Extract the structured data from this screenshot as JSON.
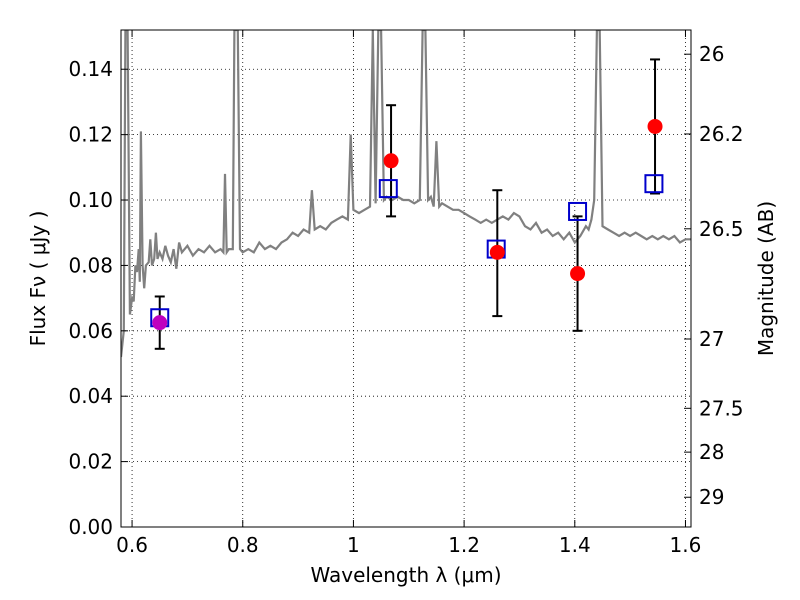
{
  "chart_data": {
    "type": "scatter",
    "xlabel": "Wavelength  λ (μm)",
    "ylabel": "Flux  Fν ( μJy )",
    "ylabel_right": "Magnitude (AB)",
    "xlim": [
      0.58,
      1.61
    ],
    "ylim": [
      0.0,
      0.152
    ],
    "grid": true,
    "colors": {
      "spectrum": "#808080",
      "observed": "#ff0000",
      "observed_first": "#bf00bf",
      "model": "#0000cc",
      "errorbar": "#000000"
    },
    "x_ticks": [
      {
        "v": 0.6,
        "label": "0.6"
      },
      {
        "v": 0.8,
        "label": "0.8"
      },
      {
        "v": 1.0,
        "label": "1"
      },
      {
        "v": 1.2,
        "label": "1.2"
      },
      {
        "v": 1.4,
        "label": "1.4"
      },
      {
        "v": 1.6,
        "label": "1.6"
      }
    ],
    "y_ticks": [
      {
        "v": 0.0,
        "label": "0.00"
      },
      {
        "v": 0.02,
        "label": "0.02"
      },
      {
        "v": 0.04,
        "label": "0.04"
      },
      {
        "v": 0.06,
        "label": "0.06"
      },
      {
        "v": 0.08,
        "label": "0.08"
      },
      {
        "v": 0.1,
        "label": "0.10"
      },
      {
        "v": 0.12,
        "label": "0.12"
      },
      {
        "v": 0.14,
        "label": "0.14"
      }
    ],
    "mag_ticks": [
      {
        "v": 0.1446,
        "label": "26"
      },
      {
        "v": 0.1202,
        "label": "26.2"
      },
      {
        "v": 0.0912,
        "label": "26.5"
      },
      {
        "v": 0.0575,
        "label": "27"
      },
      {
        "v": 0.0363,
        "label": "27.5"
      },
      {
        "v": 0.0229,
        "label": "28"
      },
      {
        "v": 0.0091,
        "label": "29"
      }
    ],
    "observed": [
      {
        "x": 0.65,
        "y": 0.0625,
        "err_lo": 0.0545,
        "err_hi": 0.0705
      },
      {
        "x": 1.068,
        "y": 0.112,
        "err_lo": 0.095,
        "err_hi": 0.129
      },
      {
        "x": 1.26,
        "y": 0.084,
        "err_lo": 0.0645,
        "err_hi": 0.103
      },
      {
        "x": 1.405,
        "y": 0.0775,
        "err_lo": 0.06,
        "err_hi": 0.095
      },
      {
        "x": 1.545,
        "y": 0.1225,
        "err_lo": 0.102,
        "err_hi": 0.143
      }
    ],
    "model": [
      {
        "x": 0.65,
        "y": 0.064
      },
      {
        "x": 1.063,
        "y": 0.1035
      },
      {
        "x": 1.258,
        "y": 0.085
      },
      {
        "x": 1.405,
        "y": 0.0965
      },
      {
        "x": 1.543,
        "y": 0.105
      }
    ],
    "spectrum": [
      [
        0.58,
        0.052
      ],
      [
        0.585,
        0.06
      ],
      [
        0.588,
        0.152
      ],
      [
        0.592,
        0.152
      ],
      [
        0.596,
        0.065
      ],
      [
        0.6,
        0.07
      ],
      [
        0.603,
        0.069
      ],
      [
        0.606,
        0.08
      ],
      [
        0.609,
        0.078
      ],
      [
        0.612,
        0.085
      ],
      [
        0.614,
        0.075
      ],
      [
        0.616,
        0.121
      ],
      [
        0.619,
        0.08
      ],
      [
        0.622,
        0.073
      ],
      [
        0.625,
        0.08
      ],
      [
        0.63,
        0.081
      ],
      [
        0.633,
        0.088
      ],
      [
        0.636,
        0.08
      ],
      [
        0.64,
        0.082
      ],
      [
        0.643,
        0.09
      ],
      [
        0.646,
        0.082
      ],
      [
        0.65,
        0.084
      ],
      [
        0.655,
        0.082
      ],
      [
        0.66,
        0.086
      ],
      [
        0.665,
        0.083
      ],
      [
        0.67,
        0.081
      ],
      [
        0.675,
        0.085
      ],
      [
        0.68,
        0.079
      ],
      [
        0.685,
        0.087
      ],
      [
        0.69,
        0.084
      ],
      [
        0.7,
        0.086
      ],
      [
        0.71,
        0.083
      ],
      [
        0.72,
        0.085
      ],
      [
        0.73,
        0.084
      ],
      [
        0.74,
        0.086
      ],
      [
        0.75,
        0.084
      ],
      [
        0.76,
        0.085
      ],
      [
        0.765,
        0.084
      ],
      [
        0.768,
        0.108
      ],
      [
        0.771,
        0.084
      ],
      [
        0.775,
        0.085
      ],
      [
        0.782,
        0.085
      ],
      [
        0.785,
        0.152
      ],
      [
        0.791,
        0.152
      ],
      [
        0.795,
        0.085
      ],
      [
        0.8,
        0.084
      ],
      [
        0.81,
        0.085
      ],
      [
        0.82,
        0.084
      ],
      [
        0.83,
        0.087
      ],
      [
        0.84,
        0.085
      ],
      [
        0.85,
        0.086
      ],
      [
        0.86,
        0.085
      ],
      [
        0.87,
        0.087
      ],
      [
        0.88,
        0.088
      ],
      [
        0.89,
        0.09
      ],
      [
        0.9,
        0.089
      ],
      [
        0.91,
        0.091
      ],
      [
        0.92,
        0.09
      ],
      [
        0.925,
        0.103
      ],
      [
        0.93,
        0.091
      ],
      [
        0.94,
        0.092
      ],
      [
        0.95,
        0.091
      ],
      [
        0.96,
        0.093
      ],
      [
        0.97,
        0.094
      ],
      [
        0.98,
        0.095
      ],
      [
        0.99,
        0.094
      ],
      [
        0.995,
        0.12
      ],
      [
        1.0,
        0.097
      ],
      [
        1.01,
        0.096
      ],
      [
        1.02,
        0.097
      ],
      [
        1.03,
        0.098
      ],
      [
        1.035,
        0.152
      ],
      [
        1.04,
        0.099
      ],
      [
        1.045,
        0.152
      ],
      [
        1.05,
        0.152
      ],
      [
        1.055,
        0.1
      ],
      [
        1.06,
        0.101
      ],
      [
        1.07,
        0.1
      ],
      [
        1.08,
        0.101
      ],
      [
        1.09,
        0.1
      ],
      [
        1.1,
        0.1
      ],
      [
        1.11,
        0.099
      ],
      [
        1.12,
        0.1
      ],
      [
        1.125,
        0.152
      ],
      [
        1.13,
        0.152
      ],
      [
        1.135,
        0.1
      ],
      [
        1.14,
        0.101
      ],
      [
        1.145,
        0.098
      ],
      [
        1.15,
        0.118
      ],
      [
        1.155,
        0.098
      ],
      [
        1.16,
        0.099
      ],
      [
        1.17,
        0.098
      ],
      [
        1.18,
        0.097
      ],
      [
        1.19,
        0.097
      ],
      [
        1.2,
        0.096
      ],
      [
        1.21,
        0.095
      ],
      [
        1.22,
        0.094
      ],
      [
        1.23,
        0.093
      ],
      [
        1.24,
        0.094
      ],
      [
        1.25,
        0.093
      ],
      [
        1.26,
        0.094
      ],
      [
        1.27,
        0.095
      ],
      [
        1.28,
        0.094
      ],
      [
        1.29,
        0.096
      ],
      [
        1.3,
        0.095
      ],
      [
        1.31,
        0.092
      ],
      [
        1.32,
        0.091
      ],
      [
        1.33,
        0.093
      ],
      [
        1.34,
        0.09
      ],
      [
        1.35,
        0.091
      ],
      [
        1.36,
        0.089
      ],
      [
        1.37,
        0.09
      ],
      [
        1.38,
        0.088
      ],
      [
        1.39,
        0.09
      ],
      [
        1.4,
        0.087
      ],
      [
        1.41,
        0.089
      ],
      [
        1.42,
        0.092
      ],
      [
        1.425,
        0.091
      ],
      [
        1.43,
        0.094
      ],
      [
        1.435,
        0.1
      ],
      [
        1.44,
        0.152
      ],
      [
        1.445,
        0.152
      ],
      [
        1.45,
        0.092
      ],
      [
        1.46,
        0.091
      ],
      [
        1.47,
        0.09
      ],
      [
        1.48,
        0.089
      ],
      [
        1.49,
        0.09
      ],
      [
        1.5,
        0.089
      ],
      [
        1.51,
        0.09
      ],
      [
        1.52,
        0.089
      ],
      [
        1.53,
        0.088
      ],
      [
        1.54,
        0.089
      ],
      [
        1.55,
        0.088
      ],
      [
        1.56,
        0.089
      ],
      [
        1.57,
        0.088
      ],
      [
        1.58,
        0.089
      ],
      [
        1.59,
        0.087
      ],
      [
        1.6,
        0.088
      ],
      [
        1.61,
        0.088
      ]
    ]
  }
}
